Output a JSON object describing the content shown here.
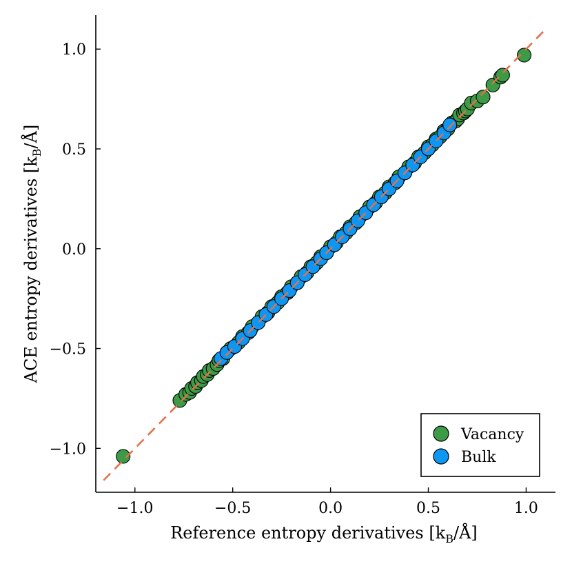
{
  "colors": {
    "vacancy": "#3d9a46",
    "bulk": "#0d97f3",
    "fit_line": "#e0714b",
    "marker_edge": "#000000",
    "axis": "#000000"
  },
  "chart_data": {
    "type": "scatter",
    "xlabel": "Reference entropy derivatives [k",
    "ylabel": "ACE entropy derivatives [k",
    "label_subscript": "B",
    "label_unit_suffix": "/Å]",
    "xlim": [
      -1.2,
      1.15
    ],
    "ylim": [
      -1.22,
      1.17
    ],
    "x_ticks": [
      -1.0,
      -0.5,
      0.0,
      0.5,
      1.0
    ],
    "y_ticks": [
      -1.0,
      -0.5,
      0.0,
      0.5,
      1.0
    ],
    "x_tick_labels": [
      "−1.0",
      "−0.5",
      "0.0",
      "0.5",
      "1.0"
    ],
    "y_tick_labels": [
      "−1.0",
      "−0.5",
      "0.0",
      "0.5",
      "1.0"
    ],
    "grid": false,
    "legend_position": "bottom-right",
    "reference_line": {
      "name": "y = x",
      "style": "dashed",
      "x": [
        -1.16,
        1.1
      ],
      "y": [
        -1.16,
        1.1
      ]
    },
    "series": [
      {
        "name": "Vacancy",
        "x": [
          -1.06,
          -0.77,
          -0.74,
          -0.72,
          -0.71,
          -0.69,
          -0.68,
          -0.66,
          -0.65,
          -0.63,
          -0.62,
          -0.6,
          -0.58,
          -0.57,
          -0.55,
          -0.53,
          -0.51,
          -0.49,
          -0.47,
          -0.45,
          -0.42,
          -0.4,
          -0.37,
          -0.35,
          -0.32,
          -0.3,
          -0.27,
          -0.25,
          -0.22,
          -0.2,
          -0.17,
          -0.15,
          -0.12,
          -0.1,
          -0.07,
          -0.05,
          -0.02,
          0.0,
          0.03,
          0.05,
          0.08,
          0.1,
          0.13,
          0.15,
          0.18,
          0.2,
          0.23,
          0.25,
          0.28,
          0.3,
          0.33,
          0.35,
          0.38,
          0.4,
          0.43,
          0.45,
          0.48,
          0.5,
          0.52,
          0.54,
          0.56,
          0.58,
          0.6,
          0.62,
          0.64,
          0.65,
          0.66,
          0.68,
          0.69,
          0.7,
          0.72,
          0.75,
          0.78,
          0.83,
          0.87,
          0.88,
          0.99
        ],
        "y": [
          -1.04,
          -0.76,
          -0.73,
          -0.72,
          -0.7,
          -0.69,
          -0.67,
          -0.66,
          -0.64,
          -0.63,
          -0.61,
          -0.6,
          -0.58,
          -0.56,
          -0.55,
          -0.52,
          -0.5,
          -0.49,
          -0.47,
          -0.44,
          -0.42,
          -0.39,
          -0.37,
          -0.34,
          -0.32,
          -0.29,
          -0.27,
          -0.24,
          -0.22,
          -0.19,
          -0.17,
          -0.14,
          -0.12,
          -0.09,
          -0.07,
          -0.04,
          -0.02,
          0.01,
          0.03,
          0.06,
          0.08,
          0.11,
          0.13,
          0.16,
          0.18,
          0.21,
          0.23,
          0.26,
          0.28,
          0.31,
          0.33,
          0.36,
          0.38,
          0.41,
          0.43,
          0.46,
          0.48,
          0.51,
          0.52,
          0.55,
          0.56,
          0.59,
          0.6,
          0.63,
          0.64,
          0.65,
          0.67,
          0.68,
          0.69,
          0.7,
          0.73,
          0.74,
          0.76,
          0.82,
          0.86,
          0.87,
          0.97
        ]
      },
      {
        "name": "Bulk",
        "x": [
          -0.56,
          -0.53,
          -0.49,
          -0.45,
          -0.41,
          -0.37,
          -0.33,
          -0.29,
          -0.25,
          -0.21,
          -0.17,
          -0.13,
          -0.09,
          -0.05,
          -0.02,
          0.02,
          0.06,
          0.1,
          0.14,
          0.18,
          0.22,
          0.26,
          0.3,
          0.34,
          0.38,
          0.42,
          0.46,
          0.5,
          0.54,
          0.58,
          0.61
        ],
        "y": [
          -0.55,
          -0.52,
          -0.49,
          -0.45,
          -0.41,
          -0.37,
          -0.33,
          -0.29,
          -0.25,
          -0.21,
          -0.17,
          -0.13,
          -0.09,
          -0.05,
          -0.02,
          0.02,
          0.06,
          0.1,
          0.14,
          0.18,
          0.22,
          0.26,
          0.3,
          0.34,
          0.38,
          0.42,
          0.46,
          0.5,
          0.54,
          0.58,
          0.62
        ]
      }
    ]
  }
}
